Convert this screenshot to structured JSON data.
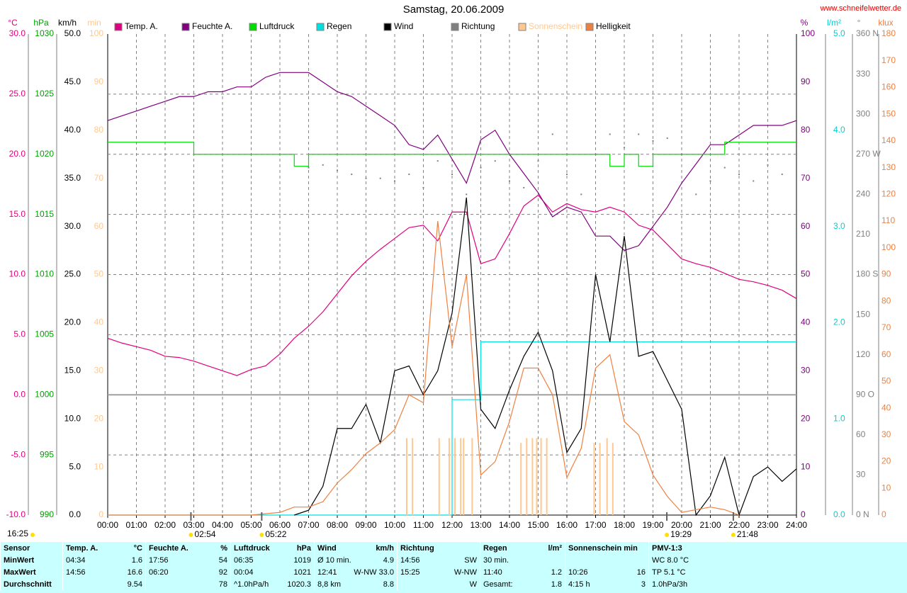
{
  "chart_data": {
    "type": "line",
    "title": "Samstag, 20.06.2009",
    "source": "www.schneifelwetter.de",
    "xlim": [
      0,
      24
    ],
    "xticks": [
      {
        "value": 0,
        "label": "00:00"
      },
      {
        "value": 1,
        "label": "01:00"
      },
      {
        "value": 2,
        "label": "02:00"
      },
      {
        "value": 3,
        "label": "03:00"
      },
      {
        "value": 4,
        "label": "04:00"
      },
      {
        "value": 5,
        "label": "05:00"
      },
      {
        "value": 6,
        "label": "06:00"
      },
      {
        "value": 7,
        "label": "07:00"
      },
      {
        "value": 8,
        "label": "08:00"
      },
      {
        "value": 9,
        "label": "09:00"
      },
      {
        "value": 10,
        "label": "10:00"
      },
      {
        "value": 11,
        "label": "11:00"
      },
      {
        "value": 12,
        "label": "12:00"
      },
      {
        "value": 13,
        "label": "13:00"
      },
      {
        "value": 14,
        "label": "14:00"
      },
      {
        "value": 15,
        "label": "15:00"
      },
      {
        "value": 16,
        "label": "16:00"
      },
      {
        "value": 17,
        "label": "17:00"
      },
      {
        "value": 18,
        "label": "18:00"
      },
      {
        "value": 19,
        "label": "19:00"
      },
      {
        "value": 20,
        "label": "20:00"
      },
      {
        "value": 21,
        "label": "21:00"
      },
      {
        "value": 22,
        "label": "22:00"
      },
      {
        "value": 23,
        "label": "23:00"
      },
      {
        "value": 24,
        "label": "24:00"
      }
    ],
    "grid": true,
    "axes": [
      {
        "unit": "°C",
        "side": "left",
        "color": "#e0007f",
        "lim": [
          -10,
          30
        ],
        "ticks": [
          {
            "value": -10,
            "label": "-10.0"
          },
          {
            "value": -5,
            "label": "-5.0"
          },
          {
            "value": 0,
            "label": "0.0"
          },
          {
            "value": 5,
            "label": "5.0"
          },
          {
            "value": 10,
            "label": "10.0"
          },
          {
            "value": 15,
            "label": "15.0"
          },
          {
            "value": 20,
            "label": "20.0"
          },
          {
            "value": 25,
            "label": "25.0"
          },
          {
            "value": 30,
            "label": "30.0"
          }
        ]
      },
      {
        "unit": "hPa",
        "side": "left",
        "color": "#00a000",
        "lim": [
          990,
          1030
        ],
        "ticks": [
          990,
          995,
          1000,
          1005,
          1010,
          1015,
          1020,
          1025,
          1030
        ]
      },
      {
        "unit": "km/h",
        "side": "left",
        "color": "#000000",
        "lim": [
          0,
          50
        ],
        "ticks": [
          {
            "value": 0,
            "label": "0.0"
          },
          {
            "value": 5,
            "label": "5.0"
          },
          {
            "value": 10,
            "label": "10.0"
          },
          {
            "value": 15,
            "label": "15.0"
          },
          {
            "value": 20,
            "label": "20.0"
          },
          {
            "value": 25,
            "label": "25.0"
          },
          {
            "value": 30,
            "label": "30.0"
          },
          {
            "value": 35,
            "label": "35.0"
          },
          {
            "value": 40,
            "label": "40.0"
          },
          {
            "value": 45,
            "label": "45.0"
          },
          {
            "value": 50,
            "label": "50.0"
          }
        ]
      },
      {
        "unit": "min",
        "side": "left",
        "color": "#ffc890",
        "lim": [
          0,
          100
        ],
        "ticks": [
          0,
          10,
          20,
          30,
          40,
          50,
          60,
          70,
          80,
          90,
          100
        ]
      },
      {
        "unit": "%",
        "side": "right",
        "color": "#800080",
        "lim": [
          0,
          100
        ],
        "ticks": [
          0,
          10,
          20,
          30,
          40,
          50,
          60,
          70,
          80,
          90,
          100
        ]
      },
      {
        "unit": "l/m²",
        "side": "right",
        "color": "#00d0d0",
        "lim": [
          0,
          5
        ],
        "ticks": [
          {
            "value": 0,
            "label": "0.0"
          },
          {
            "value": 1,
            "label": "1.0"
          },
          {
            "value": 2,
            "label": "2.0"
          },
          {
            "value": 3,
            "label": "3.0"
          },
          {
            "value": 4,
            "label": "4.0"
          },
          {
            "value": 5,
            "label": "5.0"
          }
        ]
      },
      {
        "unit": "°",
        "side": "right",
        "color": "#808080",
        "lim": [
          0,
          360
        ],
        "ticks": [
          {
            "value": 0,
            "label": "0 N"
          },
          30,
          60,
          {
            "value": 90,
            "label": "90 O"
          },
          120,
          150,
          {
            "value": 180,
            "label": "180 S"
          },
          210,
          240,
          {
            "value": 270,
            "label": "270 W"
          },
          300,
          330,
          {
            "value": 360,
            "label": "360 N"
          }
        ]
      },
      {
        "unit": "klux",
        "side": "right",
        "color": "#f08040",
        "lim": [
          0,
          180
        ],
        "ticks": [
          0,
          10,
          20,
          30,
          40,
          50,
          60,
          70,
          80,
          90,
          100,
          110,
          120,
          130,
          140,
          150,
          160,
          170,
          180
        ]
      }
    ],
    "x": [
      0,
      0.5,
      1,
      1.5,
      2,
      2.5,
      3,
      3.5,
      4,
      4.5,
      5,
      5.5,
      6,
      6.5,
      7,
      7.5,
      8,
      8.5,
      9,
      9.5,
      10,
      10.5,
      11,
      11.5,
      12,
      12.5,
      13,
      13.5,
      14,
      14.5,
      15,
      15.5,
      16,
      16.5,
      17,
      17.5,
      18,
      18.5,
      19,
      19.5,
      20,
      20.5,
      21,
      21.5,
      22,
      22.5,
      23,
      23.5,
      24
    ],
    "series": [
      {
        "name": "Temp. A.",
        "color": "#e0007f",
        "axis": 0,
        "style": "line",
        "values": [
          4.7,
          4.3,
          4.0,
          3.7,
          3.2,
          3.1,
          2.8,
          2.4,
          2.0,
          1.6,
          2.1,
          2.4,
          3.4,
          4.7,
          5.7,
          6.9,
          8.4,
          9.9,
          11.1,
          12.1,
          13.0,
          13.9,
          14.1,
          12.8,
          15.2,
          15.2,
          10.9,
          11.3,
          13.4,
          15.7,
          16.6,
          15.2,
          15.9,
          15.4,
          15.2,
          15.6,
          15.2,
          14.1,
          13.7,
          12.5,
          11.3,
          10.9,
          10.6,
          10.1,
          9.6,
          9.4,
          9.1,
          8.7,
          8.0
        ]
      },
      {
        "name": "Feuchte A.",
        "color": "#800080",
        "axis": 4,
        "style": "line",
        "values": [
          82,
          83,
          84,
          85,
          86,
          87,
          87,
          88,
          88,
          89,
          89,
          91,
          92,
          92,
          92,
          90,
          88,
          87,
          85,
          83,
          81,
          77,
          76,
          79,
          74,
          69,
          78,
          80,
          75,
          71,
          67,
          62,
          64,
          63,
          58,
          58,
          55,
          56,
          60,
          64,
          69,
          73,
          77,
          77,
          79,
          81,
          81,
          81,
          82
        ]
      },
      {
        "name": "Luftdruck",
        "color": "#00dd00",
        "axis": 1,
        "style": "step",
        "values": [
          1021,
          1021,
          1021,
          1021,
          1021,
          1021,
          1020,
          1020,
          1020,
          1020,
          1020,
          1020,
          1020,
          1019,
          1020,
          1020,
          1020,
          1020,
          1020,
          1020,
          1020,
          1020,
          1020,
          1020,
          1020,
          1020,
          1020,
          1020,
          1020,
          1020,
          1020,
          1020,
          1020,
          1020,
          1020,
          1019,
          1020,
          1019,
          1020,
          1020,
          1020,
          1020,
          1020,
          1021,
          1021,
          1021,
          1021,
          1021,
          1021
        ]
      },
      {
        "name": "Regen",
        "color": "#00e0e0",
        "axis": 5,
        "style": "step",
        "values": [
          0,
          0,
          0,
          0,
          0,
          0,
          0,
          0,
          0,
          0,
          0,
          0,
          0,
          0,
          0,
          0,
          0,
          0,
          0,
          0,
          0,
          0,
          0,
          0,
          1.2,
          1.2,
          1.8,
          1.8,
          1.8,
          1.8,
          1.8,
          1.8,
          1.8,
          1.8,
          1.8,
          1.8,
          1.8,
          1.8,
          1.8,
          1.8,
          1.8,
          1.8,
          1.8,
          1.8,
          1.8,
          1.8,
          1.8,
          1.8,
          1.8
        ]
      },
      {
        "name": "Wind",
        "color": "#000000",
        "axis": 2,
        "style": "line",
        "values": [
          null,
          null,
          null,
          null,
          null,
          null,
          null,
          null,
          null,
          null,
          null,
          null,
          null,
          0,
          0.5,
          3,
          9,
          9,
          11.5,
          7.5,
          15,
          15.5,
          12.5,
          15,
          21,
          33,
          11,
          9,
          13,
          16.5,
          19,
          15,
          6.5,
          9,
          25,
          18,
          29,
          16.5,
          17,
          14,
          11,
          0,
          2,
          6,
          0,
          4,
          5,
          3.5,
          4.8
        ]
      },
      {
        "name": "Richtung",
        "color": "#808080",
        "axis": 6,
        "style": "dots",
        "values": [
          null,
          null,
          null,
          null,
          null,
          null,
          null,
          null,
          null,
          null,
          null,
          null,
          null,
          null,
          260,
          262,
          258,
          255,
          252,
          252,
          250,
          255,
          245,
          265,
          255,
          240,
          260,
          265,
          250,
          245,
          265,
          285,
          255,
          240,
          270,
          285,
          275,
          285,
          280,
          282,
          270,
          240,
          250,
          260,
          255,
          250,
          262,
          255,
          255
        ]
      },
      {
        "name": "Sonnenschein",
        "color": "#ffc890",
        "axis": 3,
        "style": "bars",
        "x": [
          10.42,
          10.62,
          11.55,
          11.9,
          12.1,
          12.3,
          12.4,
          12.7,
          14.4,
          14.6,
          14.8,
          14.95,
          15.1,
          15.3,
          16.95,
          17.15,
          17.4,
          17.6
        ],
        "values": [
          16,
          16,
          16,
          16,
          16,
          16,
          16,
          16,
          15,
          16,
          16,
          16,
          16,
          16,
          15,
          15,
          16,
          15
        ]
      },
      {
        "name": "Helligkeit",
        "color": "#f08040",
        "axis": 7,
        "style": "line",
        "values": [
          0,
          0,
          0,
          0,
          0,
          0,
          0,
          0,
          0,
          0,
          0,
          0.5,
          1,
          3,
          3,
          5,
          12,
          17,
          23,
          27,
          32,
          45,
          42,
          110,
          63,
          90,
          15,
          20,
          35,
          55,
          55,
          45,
          14,
          25,
          55,
          60,
          35,
          30,
          15,
          7,
          1,
          2,
          3,
          2,
          0,
          null,
          null,
          null,
          null
        ]
      }
    ],
    "markers": [
      {
        "time": "02:54"
      },
      {
        "time": "05:22"
      },
      {
        "time": "19:29"
      },
      {
        "time": "21:48"
      }
    ],
    "moon_time": "16:25"
  },
  "table": {
    "corner": "Sensor",
    "headers": [
      [
        "Temp. A.",
        "°C"
      ],
      [
        "Feuchte A.",
        "%"
      ],
      [
        "Luftdruck",
        "hPa"
      ],
      [
        "Wind",
        "km/h"
      ],
      [
        "Richtung",
        null
      ],
      [
        "Regen",
        "l/m²"
      ],
      [
        "Sonnenschein min",
        null
      ],
      [
        "PMV-1:3",
        null
      ]
    ],
    "rows": [
      {
        "label": "MinWert",
        "cells": [
          [
            "04:34",
            "1.6"
          ],
          [
            "17:56",
            "54"
          ],
          [
            "06:35",
            "1019"
          ],
          [
            "Ø 10 min.",
            "4.9"
          ],
          [
            "14:56",
            "SW"
          ],
          [
            "30 min.",
            null
          ],
          null,
          [
            "WC 8.0 °C",
            null
          ]
        ]
      },
      {
        "label": "MaxWert",
        "cells": [
          [
            "14:56",
            "16.6"
          ],
          [
            "06:20",
            "92"
          ],
          [
            "00:04",
            "1021"
          ],
          [
            "12:41",
            "W-NW 33.0"
          ],
          [
            "15:25",
            "W-NW"
          ],
          [
            "11:40",
            "1.2"
          ],
          [
            "10:26",
            "16"
          ],
          [
            "TP 5.1 °C",
            null
          ]
        ]
      },
      {
        "label": "Durchschnitt",
        "cells": [
          [
            null,
            "9.54"
          ],
          [
            null,
            "78"
          ],
          [
            "^1.0hPa/h",
            "1020.3"
          ],
          [
            "8,8 km",
            "8.8"
          ],
          [
            null,
            "W"
          ],
          [
            "Gesamt:",
            "1.8"
          ],
          [
            "4:15 h",
            "3"
          ],
          [
            "1.0hPa/3h",
            null
          ]
        ]
      }
    ]
  }
}
